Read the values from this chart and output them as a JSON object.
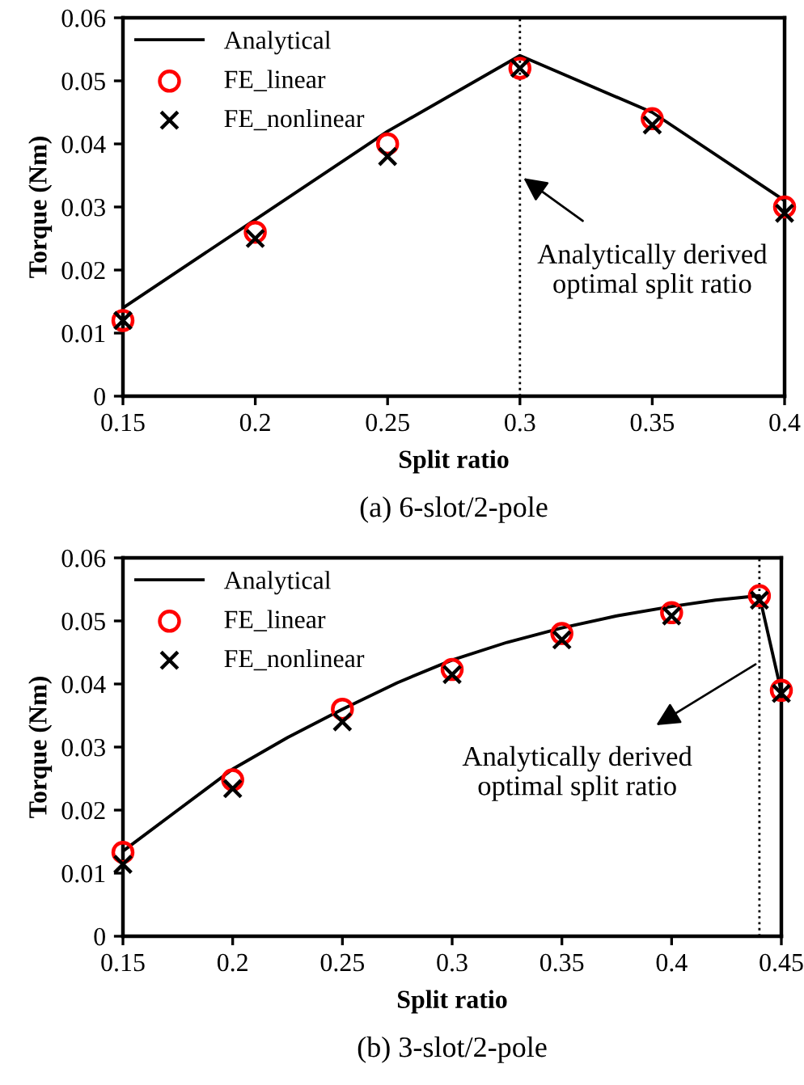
{
  "chart_data": [
    {
      "type": "line",
      "title": "(a) 6-slot/2-pole",
      "xlabel": "Split ratio",
      "ylabel": "Torque (Nm)",
      "xlim": [
        0.15,
        0.4
      ],
      "xticks": [
        0.15,
        0.2,
        0.25,
        0.3,
        0.35,
        0.4
      ],
      "ylim": [
        0,
        0.06
      ],
      "yticks": [
        0,
        0.01,
        0.02,
        0.03,
        0.04,
        0.05,
        0.06
      ],
      "legend": "top left",
      "grid": false,
      "series": [
        {
          "name": "Analytical",
          "color": "#000000",
          "marker": "none",
          "line_style": "solid",
          "x": [
            0.15,
            0.2,
            0.25,
            0.3,
            0.35,
            0.4
          ],
          "values": [
            0.014,
            0.028,
            0.042,
            0.054,
            0.045,
            0.031
          ]
        },
        {
          "name": "FE_linear",
          "type": "scatter",
          "color": "#ff0000",
          "marker": "circle",
          "x": [
            0.15,
            0.2,
            0.25,
            0.3,
            0.35,
            0.4
          ],
          "values": [
            0.012,
            0.026,
            0.04,
            0.052,
            0.044,
            0.03
          ]
        },
        {
          "name": "FE_nonlinear",
          "type": "scatter",
          "color": "#000000",
          "marker": "cross",
          "x": [
            0.15,
            0.2,
            0.25,
            0.3,
            0.35,
            0.4
          ],
          "values": [
            0.012,
            0.025,
            0.038,
            0.052,
            0.043,
            0.029
          ]
        }
      ],
      "ref_lines": [
        {
          "axis": "x",
          "value": 0.3,
          "color": "#000000",
          "line_style": "dotted"
        }
      ],
      "annotations": [
        {
          "text": "Analytically derived\noptimal split ratio",
          "x": 0.3,
          "y": 0.035
        }
      ]
    },
    {
      "type": "line",
      "title": "(b) 3-slot/2-pole",
      "xlabel": "Split ratio",
      "ylabel": "Torque (Nm)",
      "xlim": [
        0.15,
        0.45
      ],
      "xticks": [
        0.15,
        0.2,
        0.25,
        0.3,
        0.35,
        0.4,
        0.45
      ],
      "ylim": [
        0,
        0.06
      ],
      "yticks": [
        0,
        0.01,
        0.02,
        0.03,
        0.04,
        0.05,
        0.06
      ],
      "legend": "top left",
      "grid": false,
      "series": [
        {
          "name": "Analytical",
          "color": "#000000",
          "marker": "none",
          "line_style": "solid",
          "x": [
            0.15,
            0.175,
            0.2,
            0.225,
            0.25,
            0.275,
            0.3,
            0.325,
            0.35,
            0.375,
            0.4,
            0.42,
            0.44,
            0.45
          ],
          "values": [
            0.0135,
            0.02,
            0.0265,
            0.0315,
            0.036,
            0.0402,
            0.0438,
            0.0466,
            0.0489,
            0.0508,
            0.0523,
            0.0533,
            0.054,
            0.0387
          ]
        },
        {
          "name": "FE_linear",
          "type": "scatter",
          "color": "#ff0000",
          "marker": "circle",
          "x": [
            0.15,
            0.2,
            0.25,
            0.3,
            0.35,
            0.4,
            0.44,
            0.45
          ],
          "values": [
            0.0133,
            0.0248,
            0.036,
            0.0423,
            0.048,
            0.0513,
            0.054,
            0.039
          ]
        },
        {
          "name": "FE_nonlinear",
          "type": "scatter",
          "color": "#000000",
          "marker": "cross",
          "x": [
            0.15,
            0.2,
            0.25,
            0.3,
            0.35,
            0.4,
            0.44,
            0.45
          ],
          "values": [
            0.0114,
            0.0234,
            0.034,
            0.0415,
            0.047,
            0.0508,
            0.0533,
            0.0385
          ]
        }
      ],
      "ref_lines": [
        {
          "axis": "x",
          "value": 0.44,
          "color": "#000000",
          "line_style": "dotted"
        }
      ],
      "annotations": [
        {
          "text": "Analytically derived\noptimal split ratio",
          "x": 0.44,
          "y": 0.0435
        }
      ]
    }
  ]
}
